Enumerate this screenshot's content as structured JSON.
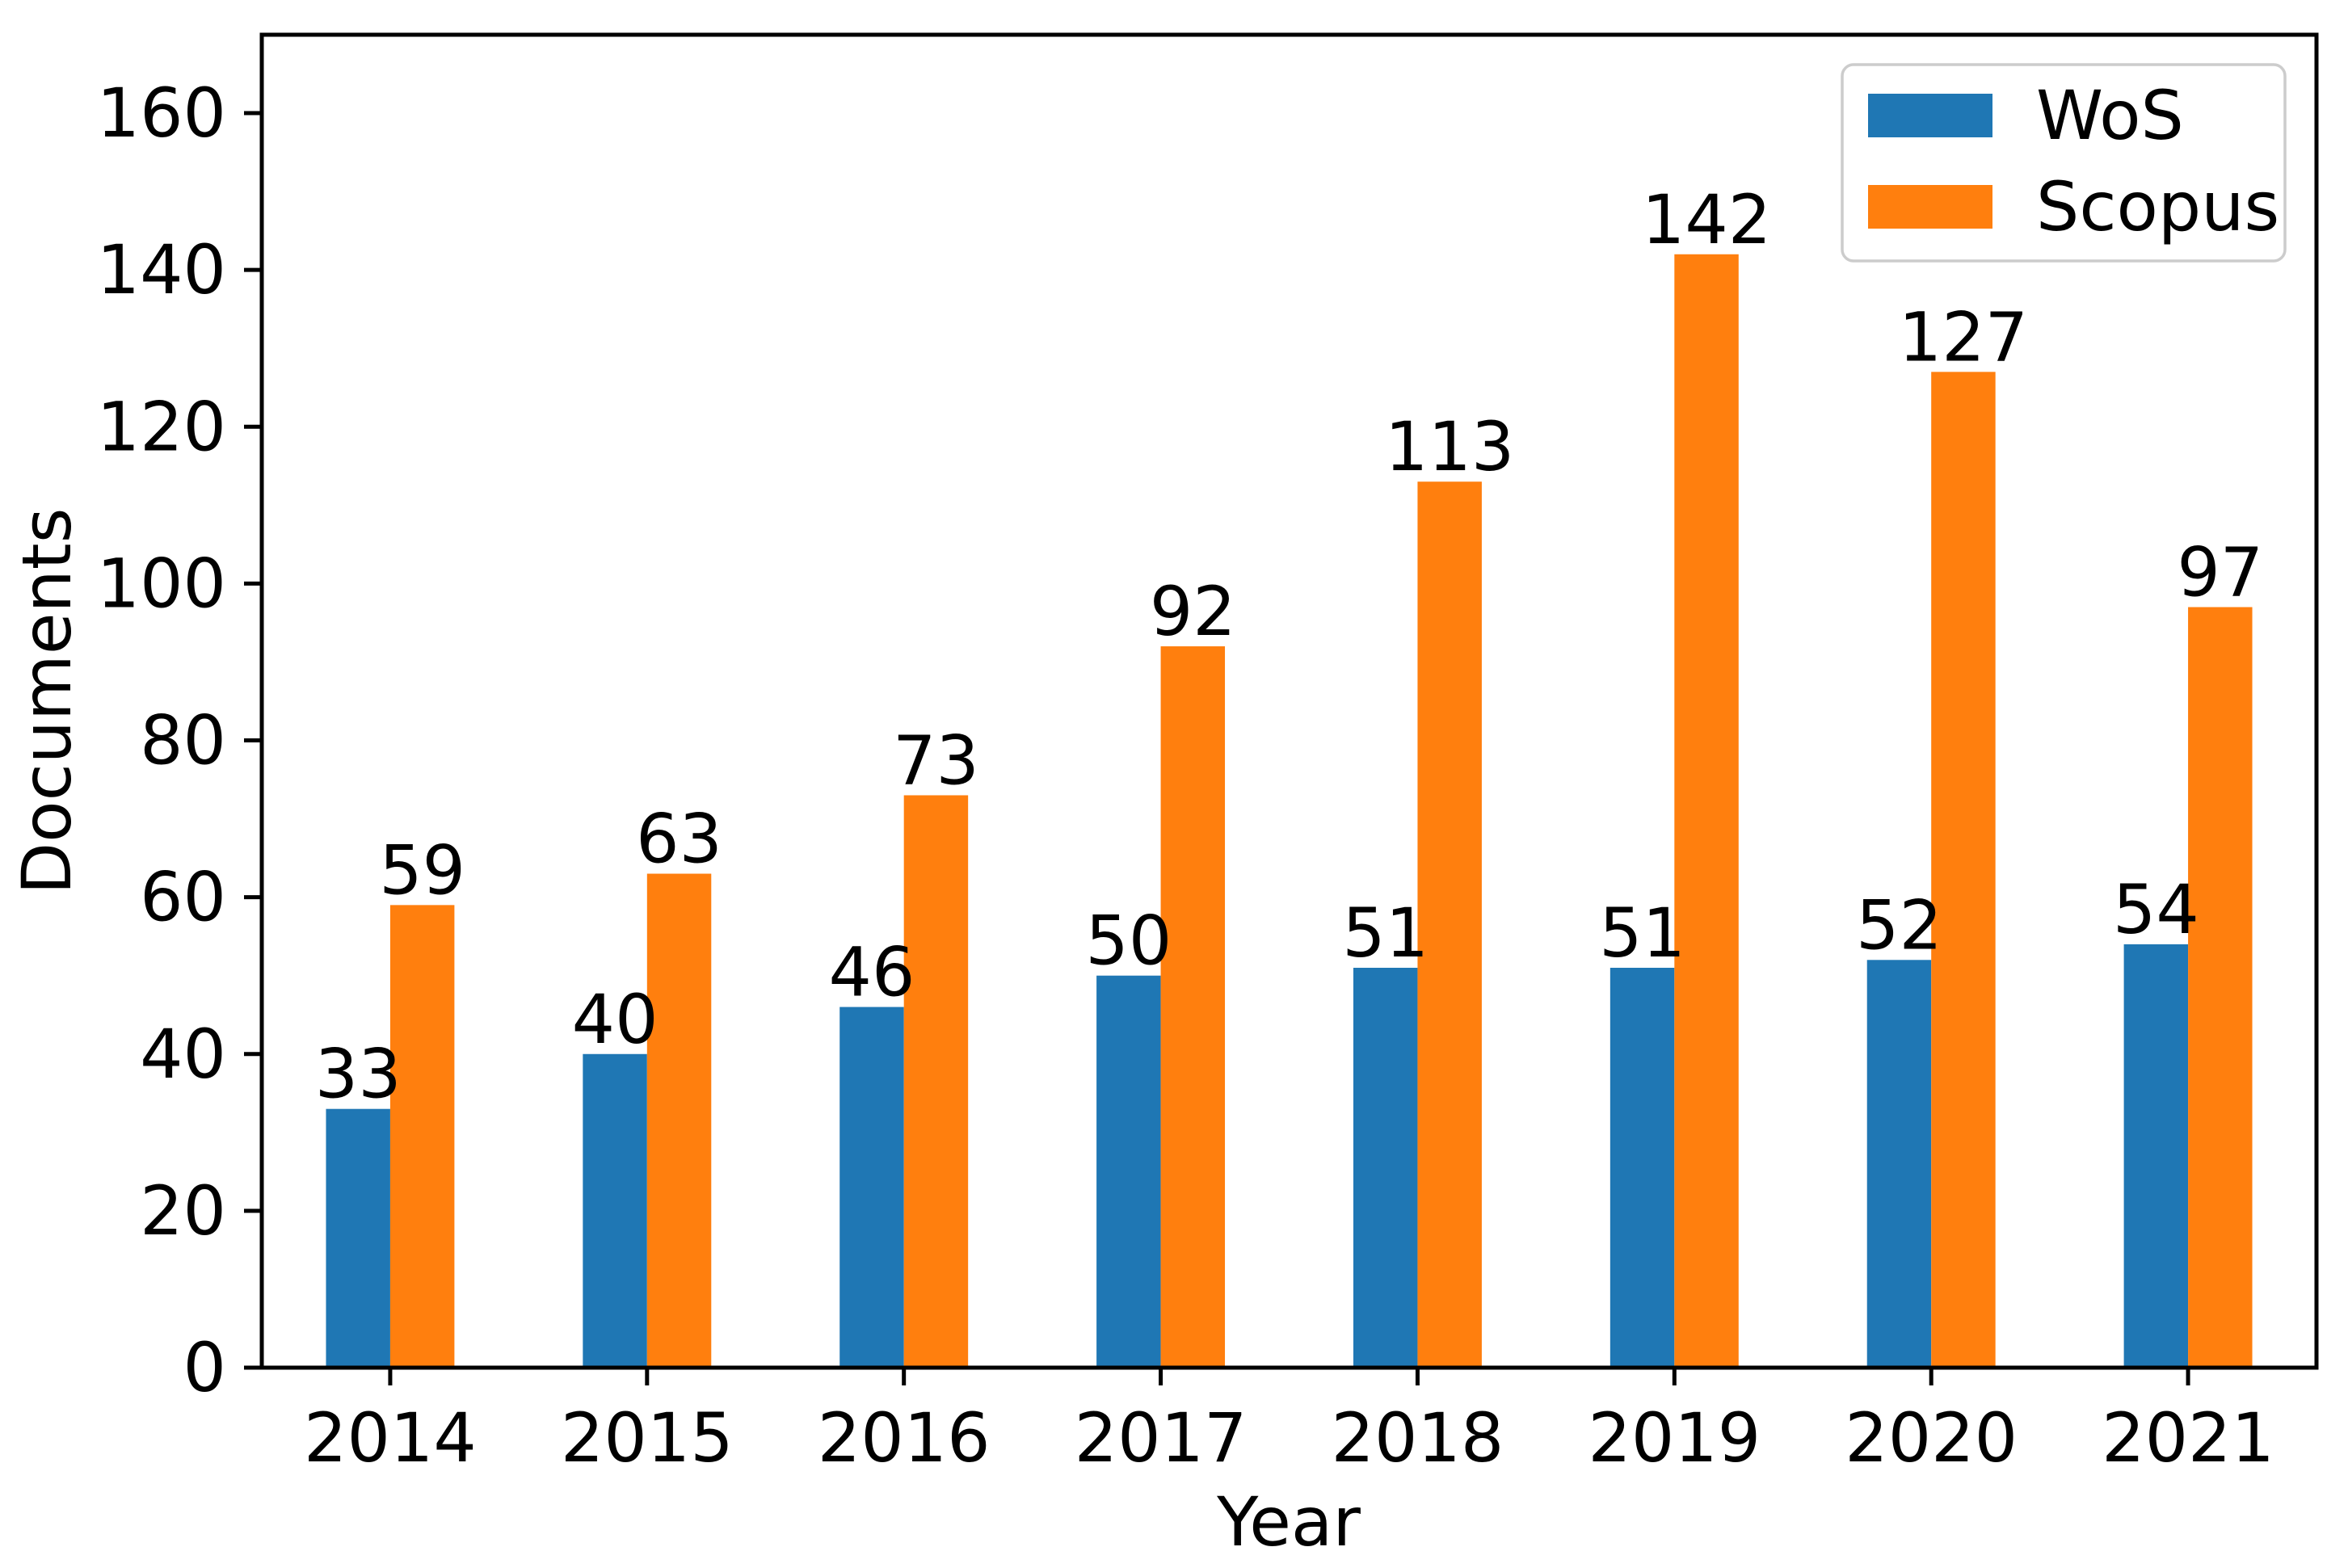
{
  "chart_data": {
    "type": "bar",
    "title": "",
    "categories": [
      "2014",
      "2015",
      "2016",
      "2017",
      "2018",
      "2019",
      "2020",
      "2021"
    ],
    "series": [
      {
        "name": "WoS",
        "color": "#1f77b4",
        "values": [
          33,
          40,
          46,
          50,
          51,
          51,
          52,
          54
        ]
      },
      {
        "name": "Scopus",
        "color": "#ff7f0e",
        "values": [
          59,
          63,
          73,
          92,
          113,
          142,
          127,
          97
        ]
      }
    ],
    "xlabel": "Year",
    "ylabel": "Documents",
    "ylim": [
      0,
      170
    ],
    "yticks": [
      0,
      20,
      40,
      60,
      80,
      100,
      120,
      140,
      160
    ],
    "bar_labels": true,
    "grid": false,
    "legend_position": "upper right"
  },
  "colors": {
    "background": "#ffffff",
    "axis": "#000000",
    "text": "#000000",
    "legend_border": "#cccccc"
  }
}
